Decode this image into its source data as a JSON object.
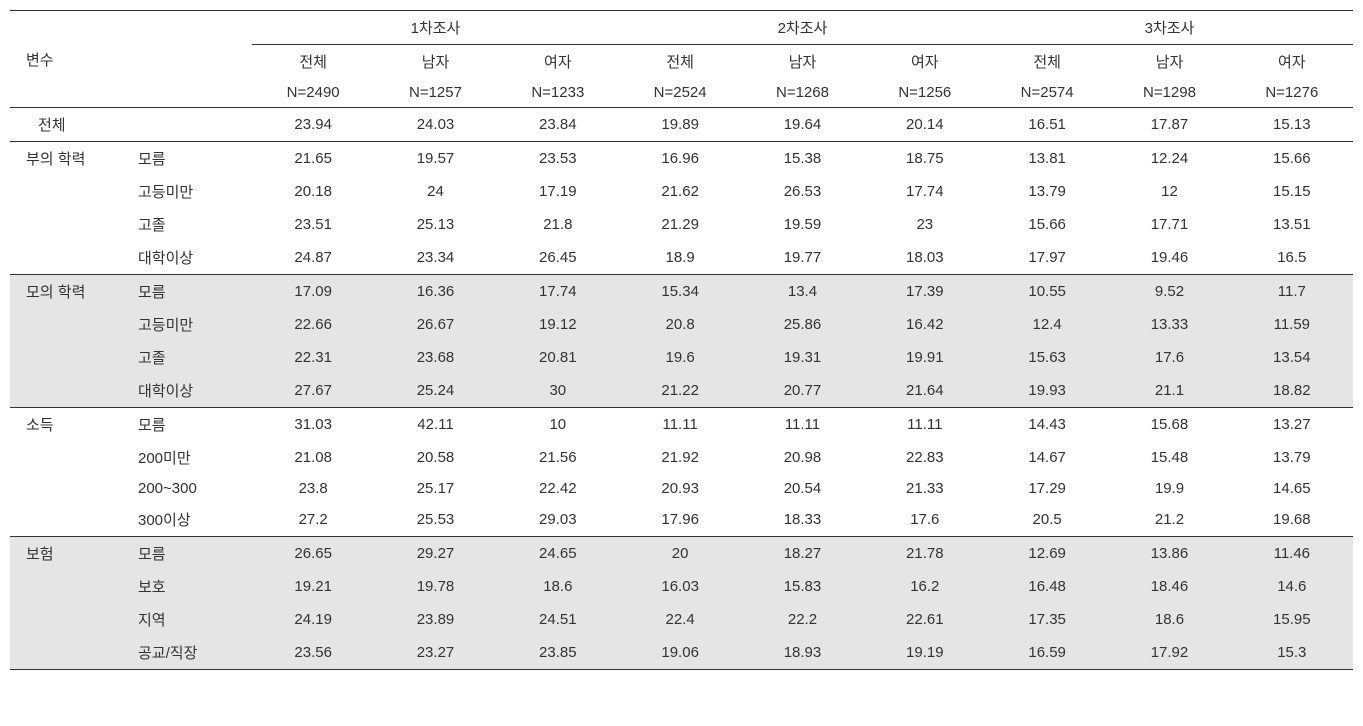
{
  "header": {
    "var_label": "변수",
    "surveys": [
      "1차조사",
      "2차조사",
      "3차조사"
    ],
    "cols": [
      "전체",
      "남자",
      "여자"
    ],
    "n": [
      [
        "N=2490",
        "N=1257",
        "N=1233"
      ],
      [
        "N=2524",
        "N=1268",
        "N=1256"
      ],
      [
        "N=2574",
        "N=1298",
        "N=1276"
      ]
    ]
  },
  "total_row": {
    "label": "전체",
    "v": [
      "23.94",
      "24.03",
      "23.84",
      "19.89",
      "19.64",
      "20.14",
      "16.51",
      "17.87",
      "15.13"
    ]
  },
  "groups": [
    {
      "label": "부의 학력",
      "shaded": false,
      "rows": [
        {
          "sub": "모름",
          "v": [
            "21.65",
            "19.57",
            "23.53",
            "16.96",
            "15.38",
            "18.75",
            "13.81",
            "12.24",
            "15.66"
          ]
        },
        {
          "sub": "고등미만",
          "v": [
            "20.18",
            "24",
            "17.19",
            "21.62",
            "26.53",
            "17.74",
            "13.79",
            "12",
            "15.15"
          ]
        },
        {
          "sub": "고졸",
          "v": [
            "23.51",
            "25.13",
            "21.8",
            "21.29",
            "19.59",
            "23",
            "15.66",
            "17.71",
            "13.51"
          ]
        },
        {
          "sub": "대학이상",
          "v": [
            "24.87",
            "23.34",
            "26.45",
            "18.9",
            "19.77",
            "18.03",
            "17.97",
            "19.46",
            "16.5"
          ]
        }
      ]
    },
    {
      "label": "모의 학력",
      "shaded": true,
      "rows": [
        {
          "sub": "모름",
          "v": [
            "17.09",
            "16.36",
            "17.74",
            "15.34",
            "13.4",
            "17.39",
            "10.55",
            "9.52",
            "11.7"
          ]
        },
        {
          "sub": "고등미만",
          "v": [
            "22.66",
            "26.67",
            "19.12",
            "20.8",
            "25.86",
            "16.42",
            "12.4",
            "13.33",
            "11.59"
          ]
        },
        {
          "sub": "고졸",
          "v": [
            "22.31",
            "23.68",
            "20.81",
            "19.6",
            "19.31",
            "19.91",
            "15.63",
            "17.6",
            "13.54"
          ]
        },
        {
          "sub": "대학이상",
          "v": [
            "27.67",
            "25.24",
            "30",
            "21.22",
            "20.77",
            "21.64",
            "19.93",
            "21.1",
            "18.82"
          ]
        }
      ]
    },
    {
      "label": "소득",
      "shaded": false,
      "rows": [
        {
          "sub": "모름",
          "v": [
            "31.03",
            "42.11",
            "10",
            "11.11",
            "11.11",
            "11.11",
            "14.43",
            "15.68",
            "13.27"
          ]
        },
        {
          "sub": "200미만",
          "v": [
            "21.08",
            "20.58",
            "21.56",
            "21.92",
            "20.98",
            "22.83",
            "14.67",
            "15.48",
            "13.79"
          ]
        },
        {
          "sub": "200~300",
          "v": [
            "23.8",
            "25.17",
            "22.42",
            "20.93",
            "20.54",
            "21.33",
            "17.29",
            "19.9",
            "14.65"
          ]
        },
        {
          "sub": "300이상",
          "v": [
            "27.2",
            "25.53",
            "29.03",
            "17.96",
            "18.33",
            "17.6",
            "20.5",
            "21.2",
            "19.68"
          ]
        }
      ]
    },
    {
      "label": "보험",
      "shaded": true,
      "rows": [
        {
          "sub": "모름",
          "v": [
            "26.65",
            "29.27",
            "24.65",
            "20",
            "18.27",
            "21.78",
            "12.69",
            "13.86",
            "11.46"
          ]
        },
        {
          "sub": "보호",
          "v": [
            "19.21",
            "19.78",
            "18.6",
            "16.03",
            "15.83",
            "16.2",
            "16.48",
            "18.46",
            "14.6"
          ]
        },
        {
          "sub": "지역",
          "v": [
            "24.19",
            "23.89",
            "24.51",
            "22.4",
            "22.2",
            "22.61",
            "17.35",
            "18.6",
            "15.95"
          ]
        },
        {
          "sub": "공교/직장",
          "v": [
            "23.56",
            "23.27",
            "23.85",
            "19.06",
            "18.93",
            "19.19",
            "16.59",
            "17.92",
            "15.3"
          ]
        }
      ]
    }
  ]
}
